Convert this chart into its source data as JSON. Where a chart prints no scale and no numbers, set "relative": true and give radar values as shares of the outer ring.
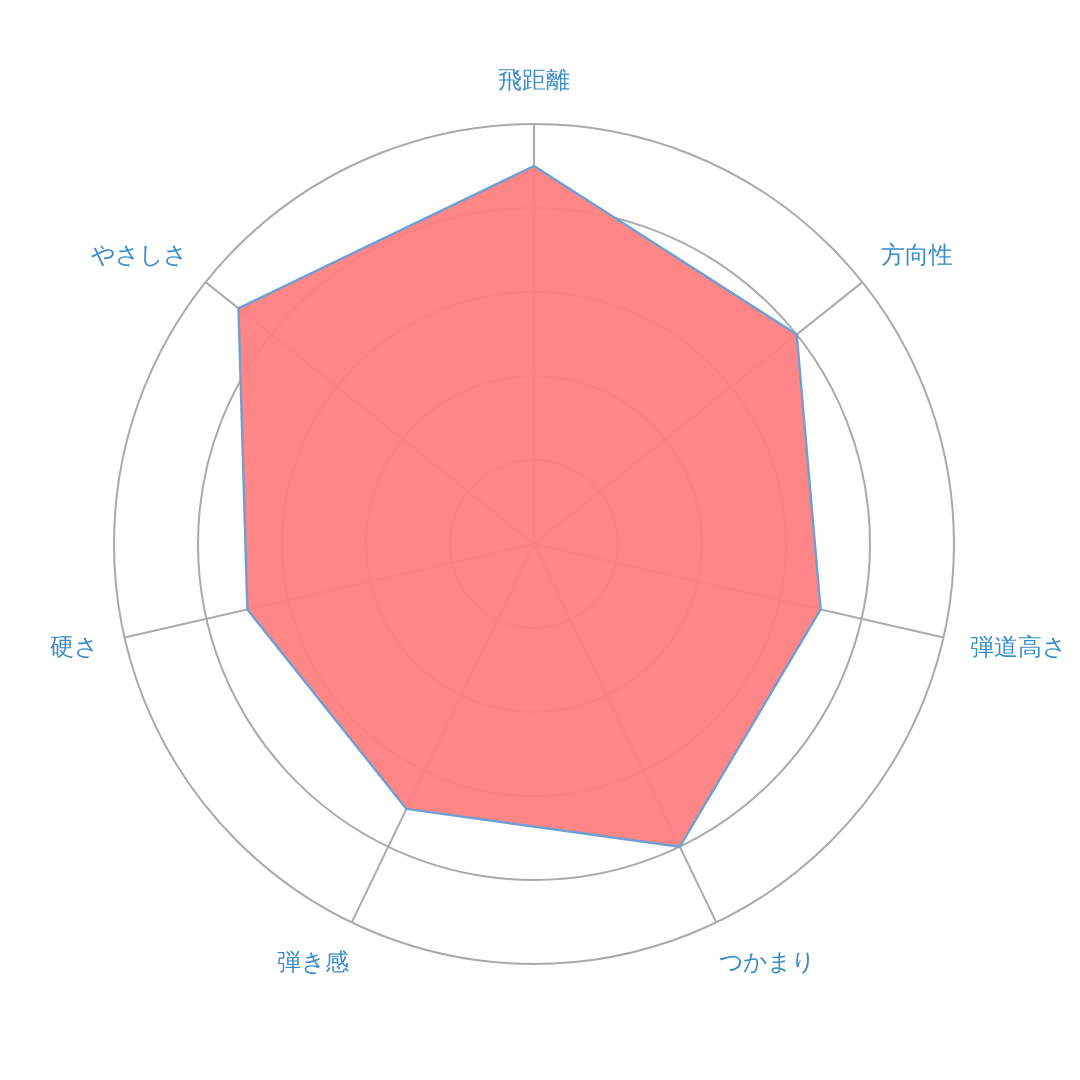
{
  "chart_data": {
    "type": "radar",
    "relative": true,
    "grid": true,
    "categories": [
      "飛距離",
      "方向性",
      "弾道高さ",
      "つかまり",
      "弾き感",
      "硬さ",
      "やさしさ"
    ],
    "series": [
      {
        "color": "#ff8080",
        "values": [
          0.9,
          0.8,
          0.7,
          0.8,
          0.7,
          0.7,
          0.9
        ]
      }
    ]
  }
}
